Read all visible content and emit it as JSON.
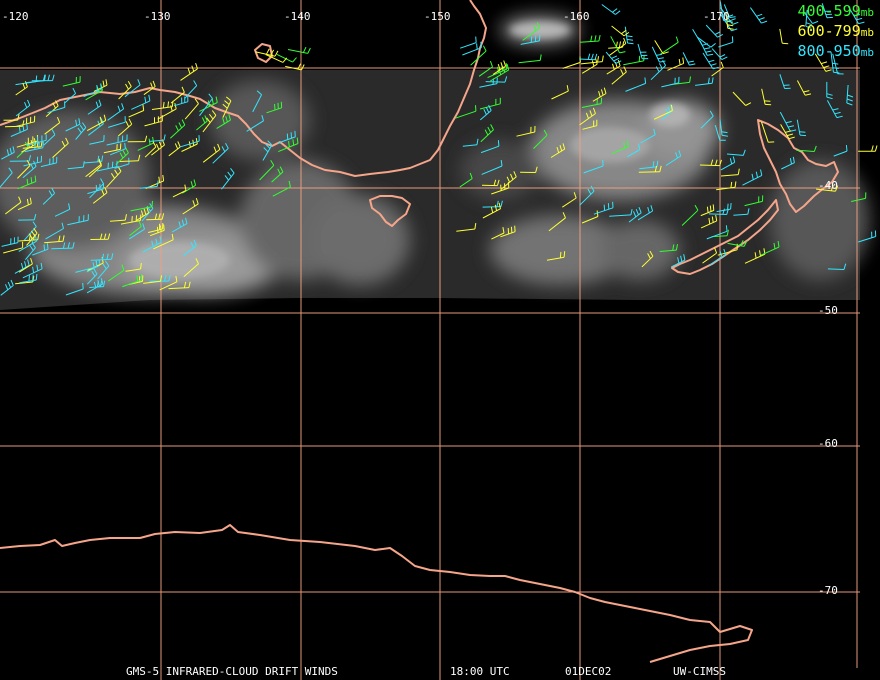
{
  "colors": {
    "grid": "#f0a080",
    "coast": "#f5a58a",
    "level_400_599": "#33ff33",
    "level_600_799": "#ffff33",
    "level_800_950": "#33e6ff"
  },
  "longitude_labels": [
    "-120",
    "-130",
    "-140",
    "-150",
    "-160",
    "-170"
  ],
  "latitude_labels": [
    "-40",
    "-50",
    "-60",
    "-70"
  ],
  "legend": [
    {
      "range": "400-599",
      "unit": "mb",
      "color": "#33ff33"
    },
    {
      "range": "600-799",
      "unit": "mb",
      "color": "#ffff33"
    },
    {
      "range": "800-950",
      "unit": "mb",
      "color": "#33e6ff"
    }
  ],
  "caption": {
    "product": "GMS-5 INFRARED-CLOUD DRIFT WINDS",
    "time": "18:00 UTC",
    "date": "01DEC02",
    "source": "UW-CIMSS"
  }
}
